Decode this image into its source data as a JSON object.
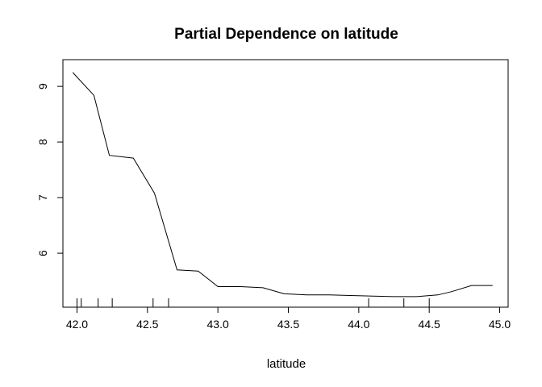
{
  "chart_data": {
    "type": "line",
    "title": "Partial Dependence on latitude",
    "xlabel": "latitude",
    "ylabel": "",
    "xlim": [
      41.9,
      45.06
    ],
    "ylim": [
      5.03,
      9.48
    ],
    "x_ticks": [
      "42.0",
      "42.5",
      "43.0",
      "43.5",
      "44.0",
      "44.5",
      "45.0"
    ],
    "y_ticks": [
      "6",
      "7",
      "8",
      "9"
    ],
    "grid": false,
    "series": [
      {
        "x": [
          41.97,
          42.12,
          42.23,
          42.4,
          42.55,
          42.71,
          42.86,
          43.0,
          43.16,
          43.32,
          43.47,
          43.63,
          43.79,
          43.94,
          44.1,
          44.25,
          44.41,
          44.56,
          44.66,
          44.8,
          44.95
        ],
        "y": [
          9.25,
          8.84,
          7.76,
          7.71,
          7.08,
          5.7,
          5.68,
          5.4,
          5.4,
          5.38,
          5.27,
          5.25,
          5.25,
          5.24,
          5.23,
          5.22,
          5.22,
          5.25,
          5.31,
          5.42,
          5.42
        ]
      }
    ],
    "rug": [
      42.0,
      42.03,
      42.15,
      42.25,
      42.54,
      42.65,
      44.07,
      44.32,
      44.5
    ]
  }
}
